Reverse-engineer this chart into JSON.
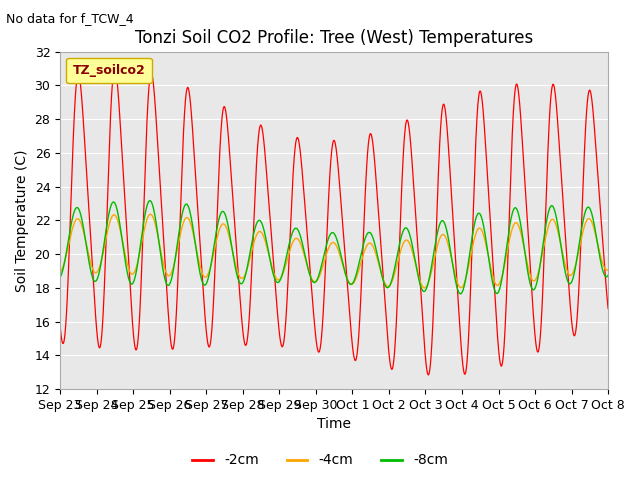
{
  "title": "Tonzi Soil CO2 Profile: Tree (West) Temperatures",
  "no_data_text": "No data for f_TCW_4",
  "xlabel": "Time",
  "ylabel": "Soil Temperature (C)",
  "ylim": [
    12,
    32
  ],
  "yticks": [
    12,
    14,
    16,
    18,
    20,
    22,
    24,
    26,
    28,
    30,
    32
  ],
  "legend_title": "TZ_soilco2",
  "legend_entries": [
    "-2cm",
    "-4cm",
    "-8cm"
  ],
  "line_colors": [
    "#ff0000",
    "#ffa500",
    "#00bb00"
  ],
  "bg_color": "#e8e8e8",
  "fig_bg_color": "#ffffff",
  "x_tick_labels": [
    "Sep 23",
    "Sep 24",
    "Sep 25",
    "Sep 26",
    "Sep 27",
    "Sep 28",
    "Sep 29",
    "Sep 30",
    "Oct 1",
    "Oct 2",
    "Oct 3",
    "Oct 4",
    "Oct 5",
    "Oct 6",
    "Oct 7",
    "Oct 8"
  ],
  "title_fontsize": 12,
  "axis_fontsize": 10,
  "tick_fontsize": 9,
  "n_days": 15
}
